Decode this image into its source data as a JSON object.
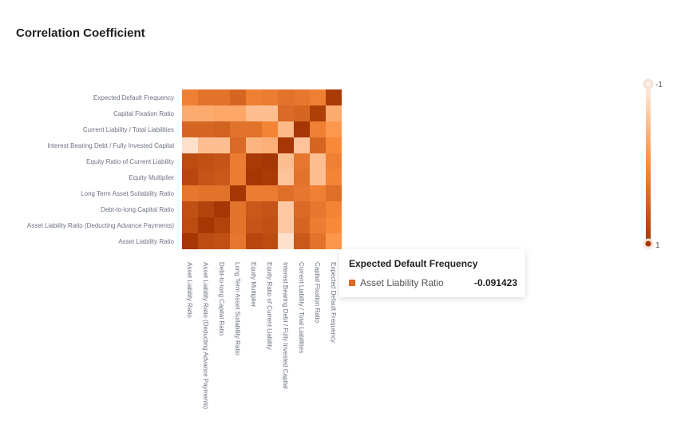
{
  "title": "Correlation Coefficient",
  "colors": {
    "low": "#fdf0e6",
    "mid": "#fc8d3c",
    "high": "#a63603"
  },
  "chart_data": {
    "type": "heatmap",
    "title": "Correlation Coefficient",
    "x_labels": [
      "Asset Liability Ratio",
      "Asset Liability Ratio (Deducting Advance Payments)",
      "Debt-to-long Capital Ratio",
      "Long Term Asset Suitability Ratio",
      "Equity Multiplier",
      "Equity Ratio of Current Liability",
      "Interest Bearing Debt / Fully Invested Capital",
      "Current Liability / Total Liabilities",
      "Capital Fixation Ratio",
      "Expected Default Frequency"
    ],
    "y_labels": [
      "Asset Liability Ratio",
      "Asset Liability Ratio (Deducting Advance Payments)",
      "Debt-to-long Capital Ratio",
      "Long Term Asset Suitability Ratio",
      "Equity Multiplier",
      "Equity Ratio of Current Liability",
      "Interest Bearing Debt / Fully Invested Capital",
      "Current Liability / Total Liabilities",
      "Capital Fixation Ratio",
      "Expected Default Frequency"
    ],
    "values": [
      [
        1.0,
        0.75,
        0.7,
        0.25,
        0.8,
        0.75,
        -0.85,
        0.6,
        0.3,
        -0.09
      ],
      [
        0.75,
        1.0,
        0.85,
        0.3,
        0.65,
        0.7,
        -0.6,
        0.45,
        0.2,
        0.05
      ],
      [
        0.7,
        0.85,
        1.0,
        0.3,
        0.6,
        0.65,
        -0.6,
        0.4,
        0.25,
        0.1
      ],
      [
        0.25,
        0.3,
        0.3,
        1.0,
        0.2,
        0.2,
        0.35,
        0.25,
        0.15,
        0.35
      ],
      [
        0.8,
        0.65,
        0.6,
        0.2,
        1.0,
        0.95,
        -0.55,
        0.3,
        -0.5,
        0.1
      ],
      [
        0.75,
        0.7,
        0.65,
        0.2,
        0.95,
        1.0,
        -0.5,
        0.25,
        -0.5,
        0.15
      ],
      [
        -0.85,
        -0.5,
        -0.5,
        0.4,
        -0.4,
        -0.35,
        1.0,
        -0.55,
        0.45,
        0.05
      ],
      [
        0.45,
        0.45,
        0.5,
        0.3,
        0.3,
        0.1,
        -0.45,
        1.0,
        0.15,
        -0.1
      ],
      [
        -0.3,
        -0.3,
        -0.25,
        -0.25,
        -0.5,
        -0.5,
        0.4,
        0.45,
        0.9,
        -0.3
      ],
      [
        0.15,
        0.3,
        0.3,
        0.45,
        0.15,
        0.2,
        0.3,
        0.25,
        0.15,
        0.95
      ]
    ],
    "value_range": [
      -1,
      1
    ],
    "legend_position": "right",
    "legend_labels": {
      "min": "-1",
      "max": "1"
    }
  },
  "tooltip": {
    "title": "Expected Default Frequency",
    "series_name": "Asset Liability Ratio",
    "value": "-0.091423"
  }
}
